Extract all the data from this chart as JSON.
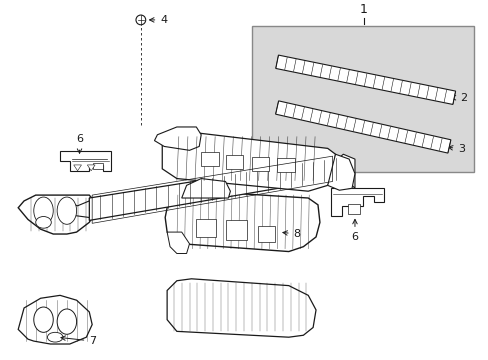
{
  "bg_color": "#ffffff",
  "line_color": "#1a1a1a",
  "box_color": "#d8d8d8",
  "fig_width": 4.89,
  "fig_height": 3.6,
  "dpi": 100
}
